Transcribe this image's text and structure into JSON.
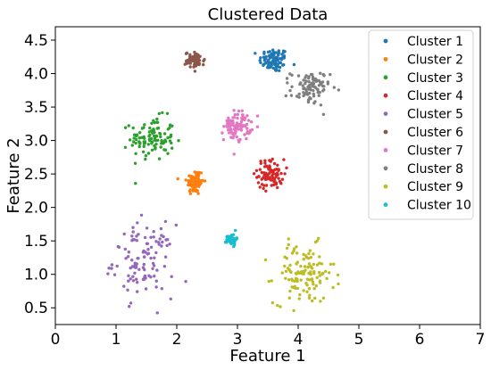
{
  "chart_data": {
    "type": "scatter",
    "title": "Clustered Data",
    "xlabel": "Feature 1",
    "ylabel": "Feature 2",
    "xlim": [
      0,
      7
    ],
    "ylim": [
      0.25,
      4.7
    ],
    "xticks": [
      0,
      1,
      2,
      3,
      4,
      5,
      6,
      7
    ],
    "yticks": [
      0.5,
      1.0,
      1.5,
      2.0,
      2.5,
      3.0,
      3.5,
      4.0,
      4.5
    ],
    "grid": false,
    "legend_position": "top-right",
    "series": [
      {
        "name": "Cluster 1",
        "color": "#1f77b4",
        "center": [
          3.6,
          4.2
        ],
        "spread": [
          0.12,
          0.09
        ],
        "n": 90
      },
      {
        "name": "Cluster 2",
        "color": "#ff7f0e",
        "center": [
          2.3,
          2.38
        ],
        "spread": [
          0.07,
          0.1
        ],
        "n": 80
      },
      {
        "name": "Cluster 3",
        "color": "#2ca02c",
        "center": [
          1.6,
          3.03
        ],
        "spread": [
          0.18,
          0.16
        ],
        "n": 110
      },
      {
        "name": "Cluster 4",
        "color": "#d62728",
        "center": [
          3.55,
          2.5
        ],
        "spread": [
          0.11,
          0.11
        ],
        "n": 85
      },
      {
        "name": "Cluster 5",
        "color": "#9467bd",
        "center": [
          1.45,
          1.2
        ],
        "spread": [
          0.25,
          0.27
        ],
        "n": 110
      },
      {
        "name": "Cluster 6",
        "color": "#8c564b",
        "center": [
          2.3,
          4.2
        ],
        "spread": [
          0.08,
          0.06
        ],
        "n": 65
      },
      {
        "name": "Cluster 7",
        "color": "#e377c2",
        "center": [
          3.0,
          3.22
        ],
        "spread": [
          0.11,
          0.11
        ],
        "n": 90
      },
      {
        "name": "Cluster 8",
        "color": "#7f7f7f",
        "center": [
          4.2,
          3.78
        ],
        "spread": [
          0.16,
          0.13
        ],
        "n": 90
      },
      {
        "name": "Cluster 9",
        "color": "#bcbd22",
        "center": [
          4.1,
          1.0
        ],
        "spread": [
          0.25,
          0.22
        ],
        "n": 120
      },
      {
        "name": "Cluster 10",
        "color": "#17becf",
        "center": [
          2.9,
          1.52
        ],
        "spread": [
          0.04,
          0.04
        ],
        "n": 60
      }
    ]
  }
}
